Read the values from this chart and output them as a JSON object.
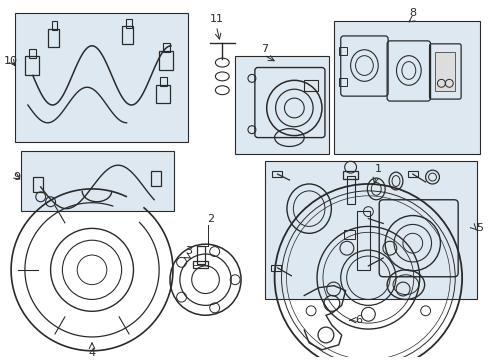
{
  "bg_color": "#ffffff",
  "line_color": "#2a2a2a",
  "box_fill": "#dde8f0",
  "fig_width": 4.9,
  "fig_height": 3.6,
  "dpi": 100
}
